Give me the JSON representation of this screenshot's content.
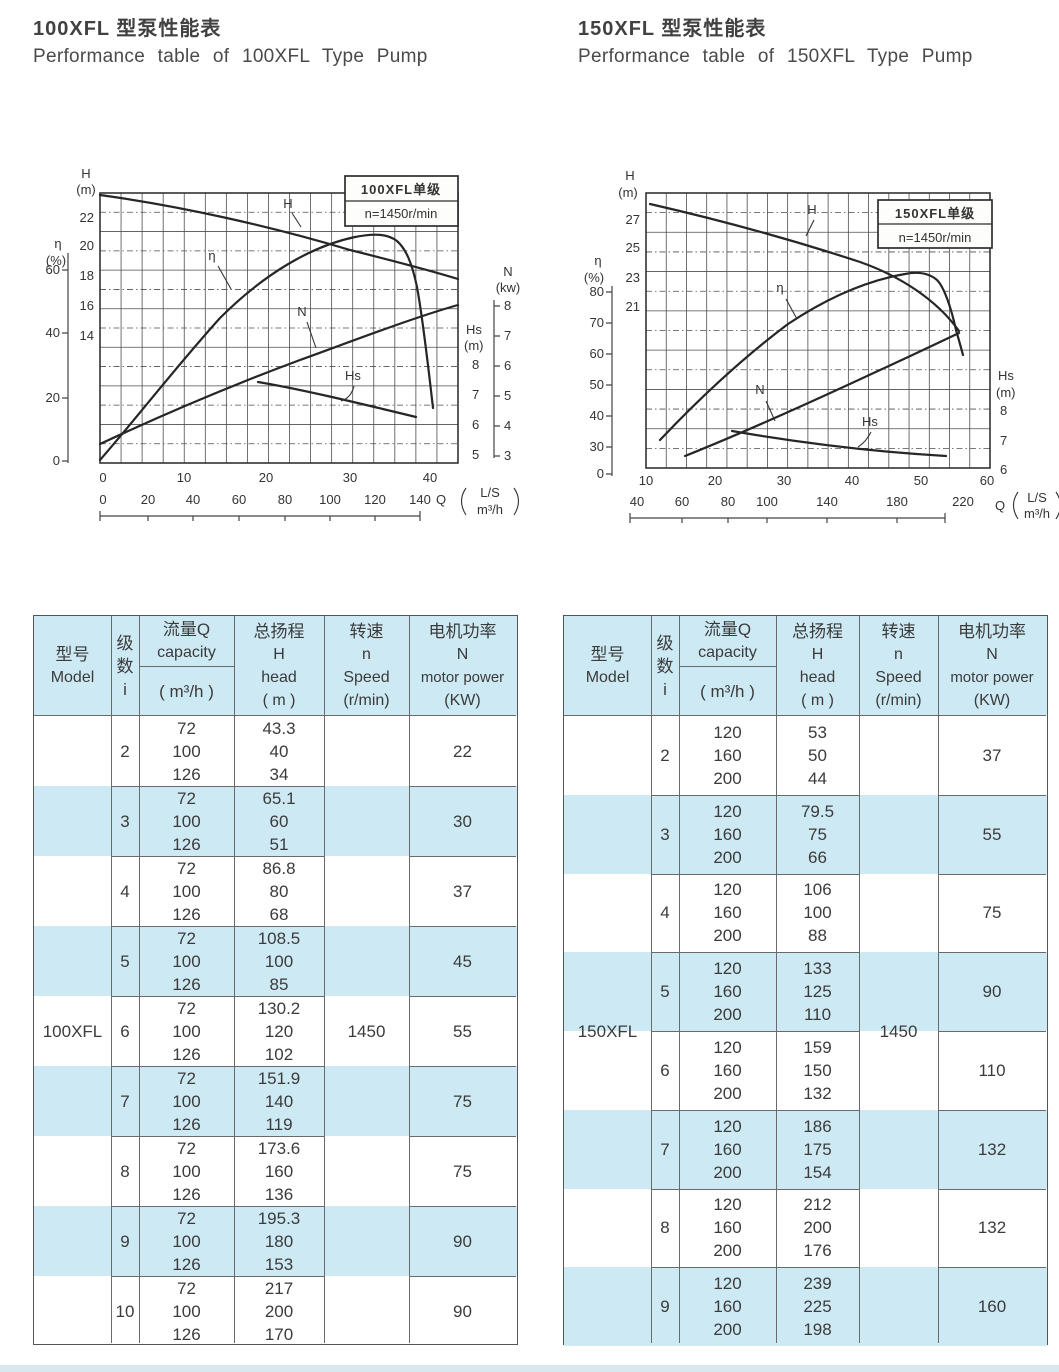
{
  "page_titles": {
    "left_zh": "100XFL 型泵性能表",
    "left_en": "Performance table of 100XFL Type Pump",
    "right_zh": "150XFL 型泵性能表",
    "right_en": "Performance table of 150XFL Type Pump"
  },
  "colors": {
    "band_blue": "#cde9f4",
    "text_dark": "#3b3b3b",
    "line": "#6a6a6a"
  },
  "chart_data": [
    {
      "type": "line",
      "title": "100XFL单级",
      "subtitle": "n=1450r/min",
      "legend_position": "top-right",
      "grid": true,
      "x_axis": {
        "name": "Q",
        "units": [
          "L/S",
          "m³/h"
        ],
        "ticks_ls": [
          "0",
          "10",
          "20",
          "30",
          "40"
        ],
        "ticks_m3h": [
          "0",
          "20",
          "40",
          "60",
          "80",
          "100",
          "120",
          "140"
        ]
      },
      "y_axes": {
        "H": {
          "label": "H",
          "unit": "(m)",
          "ticks": [
            "22",
            "20",
            "18",
            "16",
            "14"
          ]
        },
        "eta": {
          "label": "η",
          "unit": "(%)",
          "ticks": [
            "60",
            "40",
            "20",
            "0"
          ]
        },
        "N": {
          "label": "N",
          "unit": "(kw)",
          "ticks": [
            "8",
            "7",
            "6",
            "5",
            "4",
            "3"
          ]
        },
        "Hs": {
          "label": "Hs",
          "unit": "(m)",
          "ticks": [
            "8",
            "7",
            "6",
            "5"
          ]
        }
      },
      "curve_labels": {
        "H": "H",
        "eta": "η",
        "N": "N",
        "Hs": "Hs"
      },
      "series": [
        {
          "name": "H",
          "unit": "m",
          "x_ls": [
            0,
            10,
            20,
            30,
            40
          ],
          "y": [
            23,
            22.2,
            21.2,
            19.9,
            18.2
          ]
        },
        {
          "name": "η",
          "unit": "%",
          "x_ls": [
            0,
            10,
            20,
            28,
            32,
            36,
            39
          ],
          "y": [
            0,
            30,
            49,
            57,
            58,
            54,
            28
          ]
        },
        {
          "name": "N",
          "unit": "kw",
          "x_ls": [
            0,
            10,
            20,
            30,
            40
          ],
          "y": [
            3.4,
            4.8,
            6.0,
            7.1,
            7.9
          ]
        },
        {
          "name": "Hs",
          "unit": "m",
          "x_ls": [
            18,
            25,
            30,
            35
          ],
          "y": [
            7.4,
            7.0,
            6.6,
            6.2
          ]
        }
      ]
    },
    {
      "type": "line",
      "title": "150XFL单级",
      "subtitle": "n=1450r/min",
      "legend_position": "top-right",
      "grid": true,
      "x_axis": {
        "name": "Q",
        "units": [
          "L/S",
          "m³/h"
        ],
        "ticks_ls": [
          "10",
          "20",
          "30",
          "40",
          "50",
          "60"
        ],
        "ticks_m3h": [
          "40",
          "60",
          "80",
          "100",
          "140",
          "180",
          "220"
        ]
      },
      "y_axes": {
        "H": {
          "label": "H",
          "unit": "(m)",
          "ticks": [
            "27",
            "25",
            "23",
            "21"
          ]
        },
        "eta": {
          "label": "η",
          "unit": "(%)",
          "ticks": [
            "80",
            "70",
            "60",
            "50",
            "40",
            "30",
            "0"
          ]
        },
        "Hs": {
          "label": "Hs",
          "unit": "(m)",
          "ticks": [
            "8",
            "7",
            "6"
          ]
        }
      },
      "curve_labels": {
        "H": "H",
        "eta": "η",
        "N": "N",
        "Hs": "Hs"
      },
      "series": [
        {
          "name": "H",
          "unit": "m",
          "x_ls": [
            10,
            20,
            32,
            45,
            55
          ],
          "y": [
            28,
            26.6,
            25.3,
            23.1,
            19.3
          ]
        },
        {
          "name": "η",
          "unit": "%",
          "x_ls": [
            12,
            18,
            31,
            43,
            48,
            52,
            56
          ],
          "y": [
            32,
            45,
            69,
            81,
            83,
            82,
            61
          ]
        },
        {
          "name": "N",
          "unit": "kw (axis not shown)",
          "x_ls": [],
          "y": []
        },
        {
          "name": "Hs",
          "unit": "m",
          "x_ls": [
            23,
            35,
            47,
            53
          ],
          "y": [
            7.4,
            7.0,
            6.6,
            6.5
          ]
        }
      ]
    }
  ],
  "table_header": {
    "model_zh": "型号",
    "model_en": "Model",
    "stages": [
      "级",
      "数",
      "i"
    ],
    "capacity_zh": "流量Q",
    "capacity_en": "capacity",
    "capacity_unit": "( m³/h )",
    "head": [
      "总扬程",
      "H",
      "head",
      "( m )"
    ],
    "speed": [
      "转速",
      "n",
      "Speed",
      "(r/min)"
    ],
    "power": [
      "电机功率",
      "N",
      "motor power",
      "(KW)"
    ]
  },
  "tables": [
    {
      "model": "100XFL",
      "speed": "1450",
      "rows": [
        {
          "i": "2",
          "q": [
            "72",
            "100",
            "126"
          ],
          "h": [
            "43.3",
            "40",
            "34"
          ],
          "n": "22"
        },
        {
          "i": "3",
          "q": [
            "72",
            "100",
            "126"
          ],
          "h": [
            "65.1",
            "60",
            "51"
          ],
          "n": "30"
        },
        {
          "i": "4",
          "q": [
            "72",
            "100",
            "126"
          ],
          "h": [
            "86.8",
            "80",
            "68"
          ],
          "n": "37"
        },
        {
          "i": "5",
          "q": [
            "72",
            "100",
            "126"
          ],
          "h": [
            "108.5",
            "100",
            "85"
          ],
          "n": "45"
        },
        {
          "i": "6",
          "q": [
            "72",
            "100",
            "126"
          ],
          "h": [
            "130.2",
            "120",
            "102"
          ],
          "n": "55"
        },
        {
          "i": "7",
          "q": [
            "72",
            "100",
            "126"
          ],
          "h": [
            "151.9",
            "140",
            "119"
          ],
          "n": "75"
        },
        {
          "i": "8",
          "q": [
            "72",
            "100",
            "126"
          ],
          "h": [
            "173.6",
            "160",
            "136"
          ],
          "n": "75"
        },
        {
          "i": "9",
          "q": [
            "72",
            "100",
            "126"
          ],
          "h": [
            "195.3",
            "180",
            "153"
          ],
          "n": "90"
        },
        {
          "i": "10",
          "q": [
            "72",
            "100",
            "126"
          ],
          "h": [
            "217",
            "200",
            "170"
          ],
          "n": "90"
        }
      ]
    },
    {
      "model": "150XFL",
      "speed": "1450",
      "rows": [
        {
          "i": "2",
          "q": [
            "120",
            "160",
            "200"
          ],
          "h": [
            "53",
            "50",
            "44"
          ],
          "n": "37"
        },
        {
          "i": "3",
          "q": [
            "120",
            "160",
            "200"
          ],
          "h": [
            "79.5",
            "75",
            "66"
          ],
          "n": "55"
        },
        {
          "i": "4",
          "q": [
            "120",
            "160",
            "200"
          ],
          "h": [
            "106",
            "100",
            "88"
          ],
          "n": "75"
        },
        {
          "i": "5",
          "q": [
            "120",
            "160",
            "200"
          ],
          "h": [
            "133",
            "125",
            "110"
          ],
          "n": "90"
        },
        {
          "i": "6",
          "q": [
            "120",
            "160",
            "200"
          ],
          "h": [
            "159",
            "150",
            "132"
          ],
          "n": "110"
        },
        {
          "i": "7",
          "q": [
            "120",
            "160",
            "200"
          ],
          "h": [
            "186",
            "175",
            "154"
          ],
          "n": "132"
        },
        {
          "i": "8",
          "q": [
            "120",
            "160",
            "200"
          ],
          "h": [
            "212",
            "200",
            "176"
          ],
          "n": "132"
        },
        {
          "i": "9",
          "q": [
            "120",
            "160",
            "200"
          ],
          "h": [
            "239",
            "225",
            "198"
          ],
          "n": "160"
        }
      ]
    }
  ]
}
